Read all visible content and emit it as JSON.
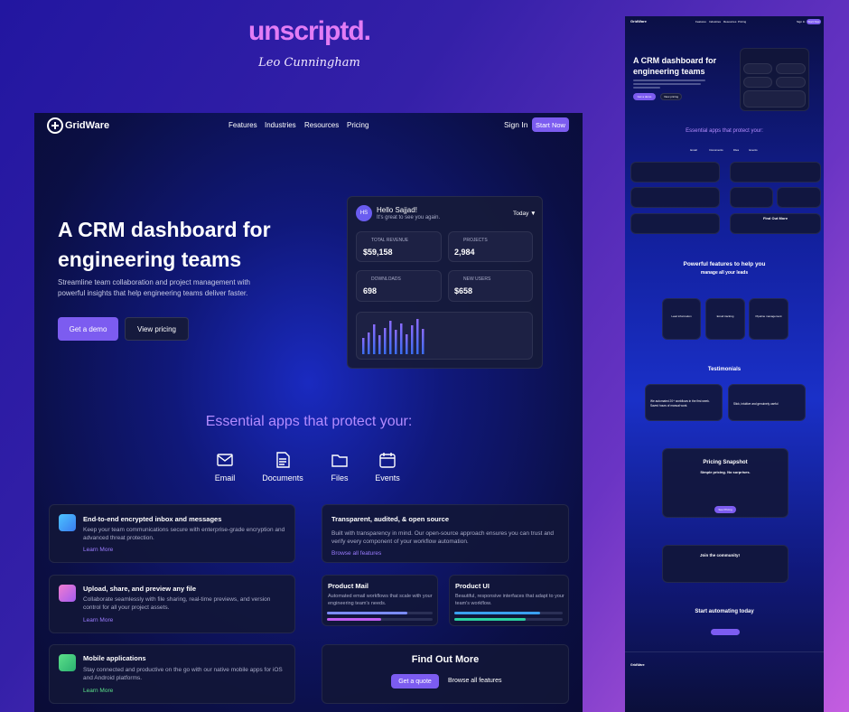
{
  "branding": {
    "logo": "unscriptd.",
    "signature": "Leo Cunningham"
  },
  "main": {
    "nav": {
      "brand": "GridWare",
      "links": [
        "Features",
        "Industries",
        "Resources",
        "Pricing"
      ],
      "sign_in": "Sign In",
      "cta": "Start Now"
    },
    "hero": {
      "title_line1": "A CRM dashboard for",
      "title_line2": "engineering teams",
      "description": "Streamline team collaboration and project management with powerful insights that help engineering teams deliver faster.",
      "primary": "Get a demo",
      "secondary": "View pricing"
    },
    "dashboard": {
      "avatar": "HS",
      "greeting": "Hello Sajjad!",
      "subtitle": "It's great to see you again.",
      "period": "Today ▼",
      "stats": [
        {
          "label": "TOTAL REVENUE",
          "value": "$59,158"
        },
        {
          "label": "PROJECTS",
          "value": "2,984"
        },
        {
          "label": "DOWNLOADS",
          "value": "698"
        },
        {
          "label": "NEW USERS",
          "value": "$658"
        }
      ]
    },
    "apps": {
      "heading": "Essential apps that protect your:",
      "items": [
        "Email",
        "Documents",
        "Files",
        "Events"
      ]
    },
    "features": [
      {
        "title": "End-to-end encrypted inbox and messages",
        "text": "Keep your team communications secure with enterprise-grade encryption and advanced threat protection.",
        "link": "Learn More"
      },
      {
        "title": "Upload, share, and preview any file",
        "text": "Collaborate seamlessly with file sharing, real-time previews, and version control for all your project assets.",
        "link": "Learn More"
      },
      {
        "title": "Mobile applications",
        "text": "Stay connected and productive on the go with our native mobile apps for iOS and Android platforms.",
        "link": "Learn More"
      }
    ],
    "transparency": {
      "title": "Transparent, audited, & open source",
      "text": "Built with transparency in mind. Our open-source approach ensures you can trust and verify every component of your workflow automation.",
      "link": "Browse all features"
    },
    "products": [
      {
        "title": "Product Mail",
        "text": "Automated email workflows that scale with your engineering team's needs."
      },
      {
        "title": "Product UI",
        "text": "Beautiful, responsive interfaces that adapt to your team's workflow."
      }
    ],
    "cta": {
      "title": "Find Out More",
      "primary": "Get a quote",
      "secondary": "Browse all features"
    }
  },
  "preview": {
    "hero_title": "A CRM dashboard for engineering teams",
    "powerful_title": "Powerful features to help you",
    "powerful_subtitle": "manage all your leads",
    "feature_cards": [
      "Lead information",
      "Email tracking",
      "Pipeline management"
    ],
    "testimonials_title": "Testimonials",
    "testimonials": [
      "We automated 20+ workflows in the first week. Saved hours of manual work.",
      "Slick, intuitive and genuinely useful"
    ],
    "pricing_title": "Pricing Snapshot",
    "pricing_subtitle": "Simple pricing. No surprises.",
    "pricing_button": "See Pricing",
    "community_title": "Join the community!",
    "final_title": "Start automating today"
  }
}
